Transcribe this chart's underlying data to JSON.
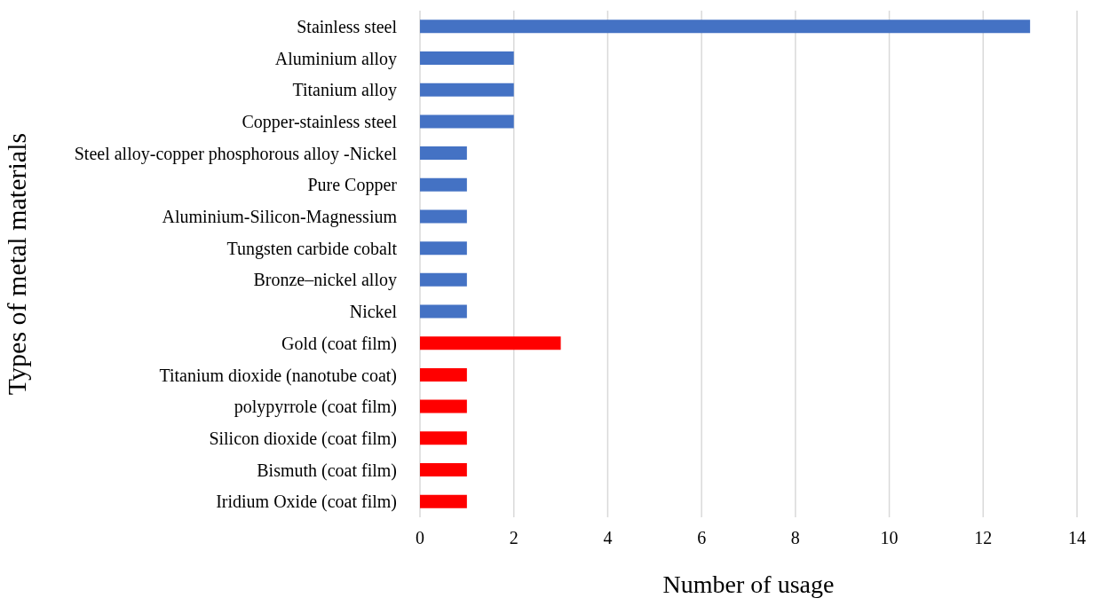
{
  "chart_data": {
    "type": "bar",
    "orientation": "horizontal",
    "xlabel": "Number of usage",
    "ylabel": "Types of metal materials",
    "categories": [
      "Stainless steel",
      "Aluminium alloy",
      "Titanium alloy",
      "Copper-stainless steel",
      "Steel alloy-copper phosphorous alloy -Nickel",
      "Pure Copper",
      "Aluminium-Silicon-Magnessium",
      "Tungsten carbide cobalt",
      "Bronze–nickel alloy",
      "Nickel",
      "Gold (coat film)",
      "Titanium dioxide  (nanotube coat)",
      "polypyrrole (coat film)",
      "Silicon dioxide (coat film)",
      "Bismuth (coat film)",
      "Iridium Oxide (coat film)"
    ],
    "values": [
      13,
      2,
      2,
      2,
      1,
      1,
      1,
      1,
      1,
      1,
      3,
      1,
      1,
      1,
      1,
      1
    ],
    "colors": [
      "#4472c4",
      "#4472c4",
      "#4472c4",
      "#4472c4",
      "#4472c4",
      "#4472c4",
      "#4472c4",
      "#4472c4",
      "#4472c4",
      "#4472c4",
      "#ff0000",
      "#ff0000",
      "#ff0000",
      "#ff0000",
      "#ff0000",
      "#ff0000"
    ],
    "xlim": [
      0,
      14
    ],
    "xticks": [
      0,
      2,
      4,
      6,
      8,
      10,
      12,
      14
    ],
    "grid": "x"
  }
}
